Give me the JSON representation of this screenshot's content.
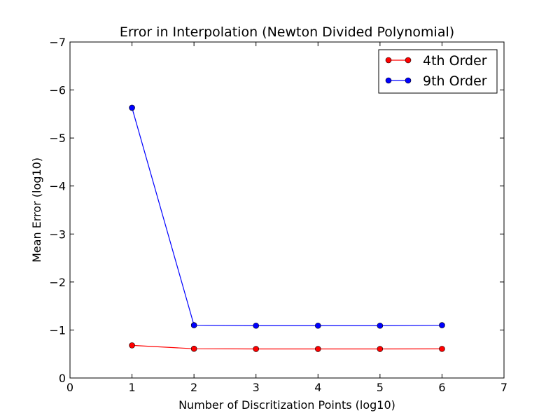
{
  "chart_data": {
    "type": "line",
    "title": "Error in Interpolation (Newton Divided Polynomial)",
    "xlabel": "Number of Discritization Points (log10)",
    "ylabel": "Mean Error (log10)",
    "xlim": [
      0,
      7
    ],
    "ylim": [
      0,
      -7
    ],
    "y_inverted": true,
    "grid": false,
    "legend_position": "top-right",
    "x_ticks": [
      "0",
      "1",
      "2",
      "3",
      "4",
      "5",
      "6",
      "7"
    ],
    "y_ticks": [
      "0",
      "−1",
      "−2",
      "−3",
      "−4",
      "−5",
      "−6",
      "−7"
    ],
    "x": [
      1,
      2,
      3,
      4,
      5,
      6
    ],
    "series": [
      {
        "name": "4th Order",
        "color": "#ff0000",
        "values": [
          -0.68,
          -0.61,
          -0.605,
          -0.605,
          -0.605,
          -0.607
        ]
      },
      {
        "name": "9th Order",
        "color": "#0000ff",
        "values": [
          -5.63,
          -1.1,
          -1.09,
          -1.09,
          -1.09,
          -1.1
        ]
      }
    ]
  }
}
